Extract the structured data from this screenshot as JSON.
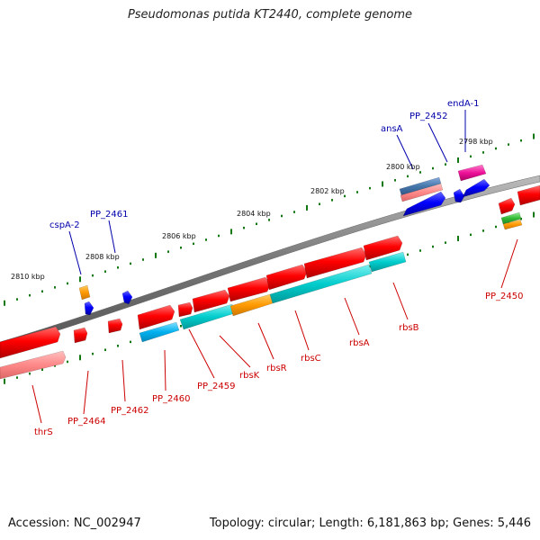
{
  "title": "Pseudomonas putida KT2440, complete genome",
  "footer": {
    "accession": "Accession: NC_002947",
    "topology": "Topology: circular; Length: 6,181,863 bp; Genes: 5,446"
  },
  "ticks": [
    "2810 kbp",
    "2808 kbp",
    "2806 kbp",
    "2804 kbp",
    "2802 kbp",
    "2800 kbp",
    "2798 kbp"
  ],
  "gene_labels": {
    "top": [
      "cspA-2",
      "PP_2461",
      "ansA",
      "PP_2452",
      "endA-1"
    ],
    "bottom": [
      "thrS",
      "PP_2464",
      "PP_2462",
      "PP_2460",
      "PP_2459",
      "rbsK",
      "rbsR",
      "rbsC",
      "rbsA",
      "rbsB",
      "PP_2450"
    ]
  },
  "colors": {
    "forward_cds": "#ff0000",
    "reverse_cds": "#0000ff",
    "rna": "#ff9900",
    "cyan_feature": "#00cccc",
    "pink_feature": "#ff8888",
    "magenta_feature": "#ee1199",
    "green_feature": "#33bb33",
    "backbone": "#777777",
    "tick_mark": "#117711",
    "label_blue": "#0000aa",
    "label_red": "#cc0000"
  }
}
